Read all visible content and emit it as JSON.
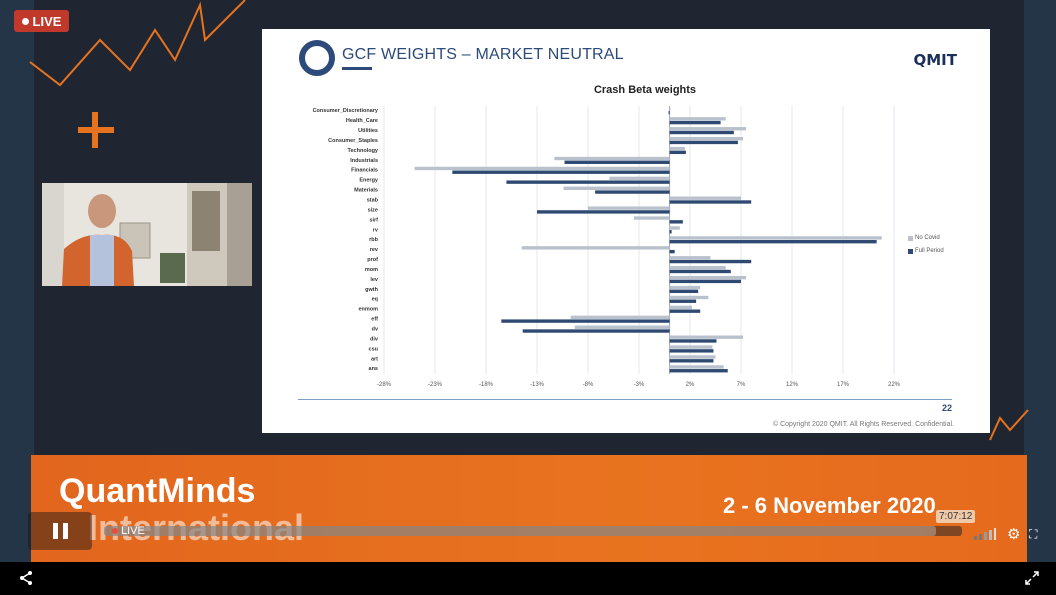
{
  "live_badge": {
    "label": "LIVE"
  },
  "slide": {
    "title": "GCF WEIGHTS – MARKET NEUTRAL",
    "brand": "QMIT",
    "page_number": "22",
    "copyright": "© Copyright 2020 QMIT. All Rights Reserved. Confidential."
  },
  "chart_data": {
    "type": "bar",
    "orientation": "horizontal",
    "title": "Crash Beta weights",
    "categories": [
      "Consumer_Discretionary",
      "Health_Care",
      "Utilities",
      "Consumer_Staples",
      "Technology",
      "Industrials",
      "Financials",
      "Energy",
      "Materials",
      "stab",
      "size",
      "sirf",
      "rv",
      "rbb",
      "rev",
      "prof",
      "mom",
      "lev",
      "gwth",
      "eq",
      "enmom",
      "eff",
      "dv",
      "div",
      "csu",
      "art",
      "ans"
    ],
    "x_ticks": [
      "-28%",
      "-23%",
      "-18%",
      "-13%",
      "-8%",
      "-3%",
      "2%",
      "7%",
      "12%",
      "17%",
      "22%"
    ],
    "xlim": [
      -28,
      22
    ],
    "series": [
      {
        "name": "No Covid",
        "color": "#b9c1cc",
        "values": [
          0,
          5.5,
          7.5,
          7.2,
          1.5,
          -11.3,
          -25,
          -5.9,
          -10.4,
          7,
          -8,
          -3.5,
          1,
          20.8,
          -14.5,
          4,
          5.5,
          7.5,
          3,
          3.8,
          2.2,
          -9.7,
          -9.3,
          7.2,
          4.2,
          4.5,
          5.3
        ]
      },
      {
        "name": "Full Period",
        "color": "#2f4a72",
        "values": [
          -0.1,
          5,
          6.3,
          6.7,
          1.6,
          -10.3,
          -21.3,
          -16,
          -7.3,
          8,
          -13,
          1.3,
          0.2,
          20.3,
          0.5,
          8,
          6,
          7,
          2.8,
          2.6,
          3,
          -16.5,
          -14.4,
          4.6,
          4.3,
          4.3,
          5.7
        ]
      }
    ],
    "legend": "right"
  },
  "banner": {
    "name_line1": "QuantMinds",
    "name_line2": "International",
    "dates": "2 - 6 November 2020"
  },
  "player": {
    "live_label": "LIVE",
    "time_tooltip": "7:07:12",
    "progress": 0.97
  },
  "colors": {
    "accent": "#e8731f",
    "slide_navy": "#2c4a7a",
    "live_red": "#c0392b"
  }
}
